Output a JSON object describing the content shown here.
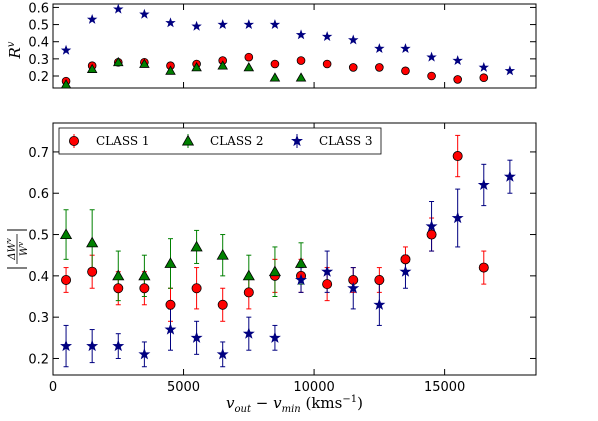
{
  "chart_data": [
    {
      "type": "scatter",
      "panel": "top",
      "ylabel_main": "R",
      "ylabel_sup": "v",
      "xlim": [
        0,
        18500
      ],
      "ylim": [
        0.13,
        0.62
      ],
      "yticks": [
        0.2,
        0.3,
        0.4,
        0.5,
        0.6
      ],
      "ytick_labels": [
        "0.2",
        "0.3",
        "0.4",
        "0.5",
        "0.6"
      ],
      "series": [
        {
          "key": "class1",
          "marker": "circle",
          "color": "#ff0000",
          "x": [
            500,
            1500,
            2500,
            3500,
            4500,
            5500,
            6500,
            7500,
            8500,
            9500,
            10500,
            11500,
            12500,
            13500,
            14500,
            15500,
            16500
          ],
          "y": [
            0.17,
            0.26,
            0.28,
            0.28,
            0.26,
            0.27,
            0.29,
            0.31,
            0.27,
            0.29,
            0.27,
            0.25,
            0.25,
            0.23,
            0.2,
            0.18,
            0.19
          ]
        },
        {
          "key": "class2",
          "marker": "triangle",
          "color": "#008000",
          "x": [
            500,
            1500,
            2500,
            3500,
            4500,
            5500,
            6500,
            7500,
            8500,
            9500
          ],
          "y": [
            0.15,
            0.24,
            0.28,
            0.27,
            0.23,
            0.25,
            0.26,
            0.25,
            0.19,
            0.19
          ]
        },
        {
          "key": "class3",
          "marker": "star",
          "color": "#000080",
          "x": [
            500,
            1500,
            2500,
            3500,
            4500,
            5500,
            6500,
            7500,
            8500,
            9500,
            10500,
            11500,
            12500,
            13500,
            14500,
            15500,
            16500,
            17500
          ],
          "y": [
            0.35,
            0.53,
            0.59,
            0.56,
            0.51,
            0.49,
            0.5,
            0.5,
            0.5,
            0.44,
            0.43,
            0.41,
            0.36,
            0.36,
            0.31,
            0.29,
            0.25,
            0.23
          ]
        }
      ]
    },
    {
      "type": "scatter",
      "panel": "bottom",
      "ylabel": "|ΔW^v / W^v|",
      "xlabel_main": "v",
      "xlabel_sub1": "out",
      "xlabel_mid": " − v",
      "xlabel_sub2": "min",
      "xlabel_unit": " (kms",
      "xlabel_unit_sup": "−1",
      "xlabel_close": ")",
      "xlim": [
        0,
        18500
      ],
      "ylim": [
        0.16,
        0.77
      ],
      "xticks": [
        0,
        5000,
        10000,
        15000
      ],
      "xtick_labels": [
        "0",
        "5000",
        "10000",
        "15000"
      ],
      "yticks": [
        0.2,
        0.3,
        0.4,
        0.5,
        0.6,
        0.7
      ],
      "ytick_labels": [
        "0.2",
        "0.3",
        "0.4",
        "0.5",
        "0.6",
        "0.7"
      ],
      "legend": {
        "position": "upper-left",
        "entries": [
          {
            "label": "CLASS 1",
            "marker": "circle",
            "color": "#ff0000"
          },
          {
            "label": "CLASS 2",
            "marker": "triangle",
            "color": "#008000"
          },
          {
            "label": "CLASS 3",
            "marker": "star",
            "color": "#000080"
          }
        ]
      },
      "series": [
        {
          "key": "class1",
          "name": "CLASS 1",
          "marker": "circle",
          "color": "#ff0000",
          "x": [
            500,
            1500,
            2500,
            3500,
            4500,
            5500,
            6500,
            7500,
            8500,
            9500,
            10500,
            11500,
            12500,
            13500,
            14500,
            15500,
            16500
          ],
          "y": [
            0.39,
            0.41,
            0.37,
            0.37,
            0.33,
            0.37,
            0.33,
            0.36,
            0.4,
            0.4,
            0.38,
            0.39,
            0.39,
            0.44,
            0.5,
            0.69,
            0.42
          ],
          "err": [
            0.03,
            0.04,
            0.04,
            0.04,
            0.04,
            0.05,
            0.04,
            0.04,
            0.04,
            0.04,
            0.04,
            0.03,
            0.03,
            0.03,
            0.04,
            0.05,
            0.04
          ]
        },
        {
          "key": "class2",
          "name": "CLASS 2",
          "marker": "triangle",
          "color": "#008000",
          "x": [
            500,
            1500,
            2500,
            3500,
            4500,
            5500,
            6500,
            7500,
            8500,
            9500
          ],
          "y": [
            0.5,
            0.48,
            0.4,
            0.4,
            0.43,
            0.47,
            0.45,
            0.4,
            0.41,
            0.43
          ],
          "err": [
            0.06,
            0.08,
            0.06,
            0.05,
            0.06,
            0.04,
            0.05,
            0.05,
            0.06,
            0.05
          ]
        },
        {
          "key": "class3",
          "name": "CLASS 3",
          "marker": "star",
          "color": "#000080",
          "x": [
            500,
            1500,
            2500,
            3500,
            4500,
            5500,
            6500,
            7500,
            8500,
            9500,
            10500,
            11500,
            12500,
            13500,
            14500,
            15500,
            16500,
            17500
          ],
          "y": [
            0.23,
            0.23,
            0.23,
            0.21,
            0.27,
            0.25,
            0.21,
            0.26,
            0.25,
            0.39,
            0.41,
            0.37,
            0.33,
            0.41,
            0.52,
            0.54,
            0.62,
            0.64
          ],
          "err": [
            0.05,
            0.04,
            0.03,
            0.03,
            0.05,
            0.04,
            0.03,
            0.04,
            0.03,
            0.03,
            0.05,
            0.05,
            0.05,
            0.04,
            0.06,
            0.07,
            0.05,
            0.04
          ]
        }
      ]
    }
  ]
}
